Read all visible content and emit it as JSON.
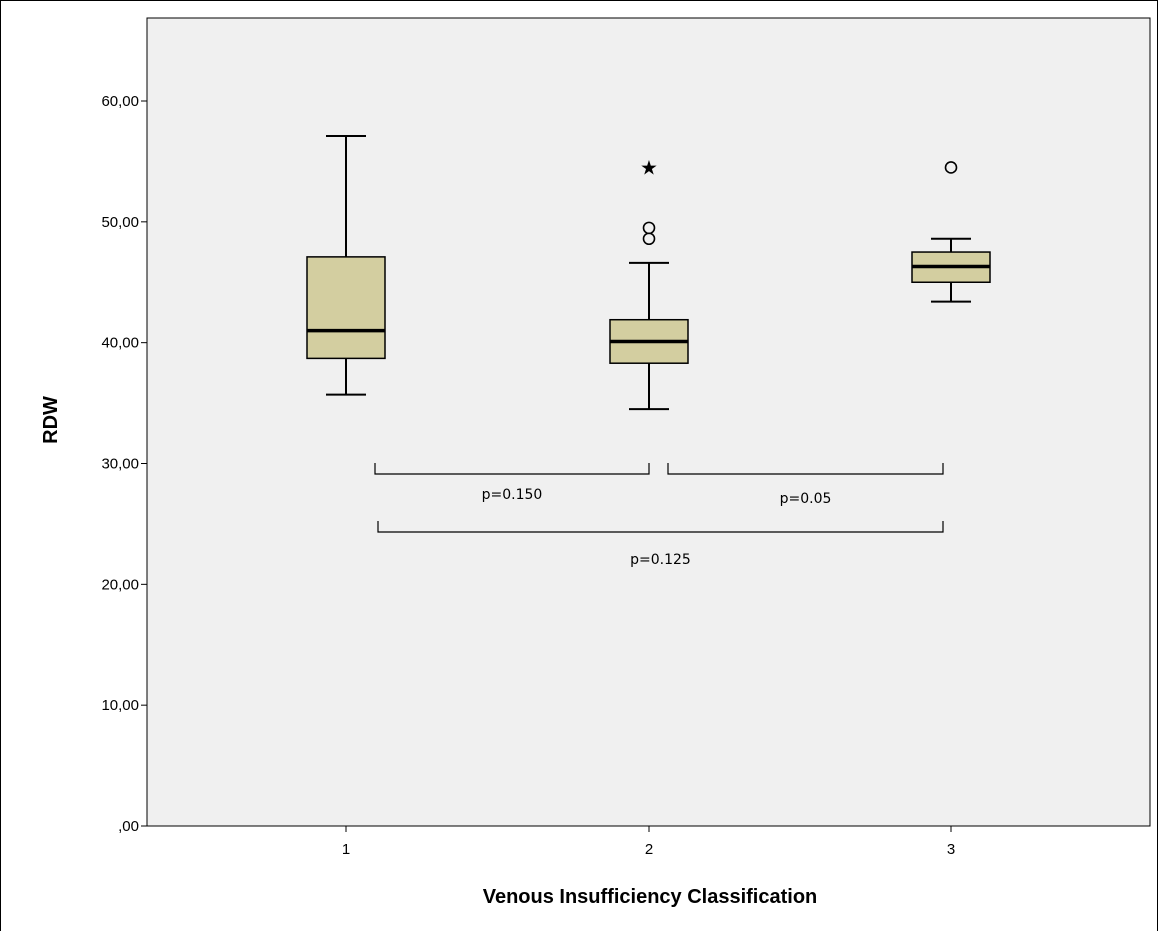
{
  "chart_data": {
    "type": "boxplot",
    "xlabel": "Venous Insufficiency Classification",
    "ylabel": "RDW",
    "ylim": [
      0,
      66
    ],
    "yticks": [
      0,
      10,
      20,
      30,
      40,
      50,
      60
    ],
    "ytick_labels": [
      ",00",
      "10,00",
      "20,00",
      "30,00",
      "40,00",
      "50,00",
      "60,00"
    ],
    "categories": [
      "1",
      "2",
      "3"
    ],
    "colors": {
      "plot_bg": "#f0f0f0",
      "box_fill": "#d3cea0",
      "stroke": "#000000"
    },
    "boxes": [
      {
        "category": "1",
        "whisker_low": 35.7,
        "q1": 38.7,
        "median": 41.0,
        "q3": 47.1,
        "whisker_high": 57.1,
        "outliers": [],
        "extremes": []
      },
      {
        "category": "2",
        "whisker_low": 34.5,
        "q1": 38.3,
        "median": 40.1,
        "q3": 41.9,
        "whisker_high": 46.6,
        "outliers": [
          48.6,
          49.5
        ],
        "extremes": [
          54.5
        ]
      },
      {
        "category": "3",
        "whisker_low": 43.4,
        "q1": 45.0,
        "median": 46.3,
        "q3": 47.5,
        "whisker_high": 48.6,
        "outliers": [
          54.5
        ],
        "extremes": []
      }
    ],
    "comparisons": [
      {
        "from": "1",
        "to": "2",
        "label": "p=0.150"
      },
      {
        "from": "2",
        "to": "3",
        "label": "p=0.05"
      },
      {
        "from": "1",
        "to": "3",
        "label": "p=0.125"
      }
    ]
  }
}
